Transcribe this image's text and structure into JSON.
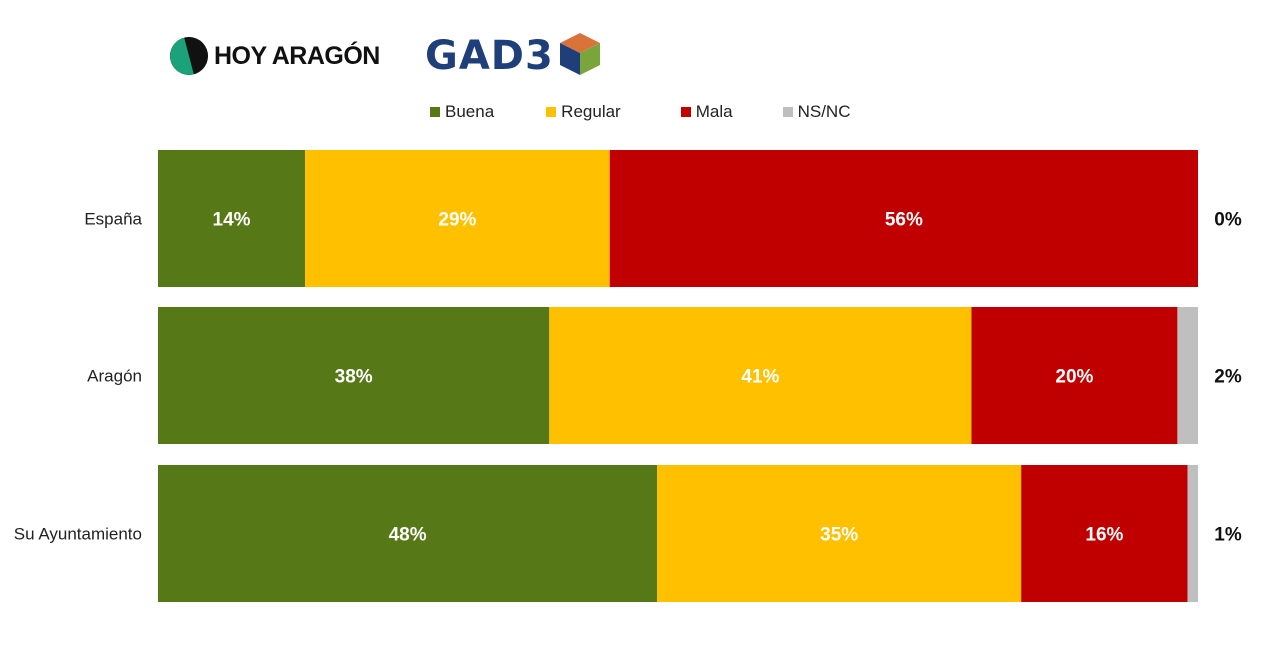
{
  "logos": {
    "hoy_aragon": "HOY ARAGÓN",
    "gad3": "GAD3"
  },
  "chart_data": {
    "type": "bar",
    "orientation": "horizontal-stacked-100",
    "categories": [
      "España",
      "Aragón",
      "Su Ayuntamiento"
    ],
    "series": [
      {
        "name": "Buena",
        "color": "#567816",
        "values": [
          14,
          38,
          48
        ],
        "labels": [
          "14%",
          "38%",
          "48%"
        ]
      },
      {
        "name": "Regular",
        "color": "#ffc000",
        "values": [
          29,
          41,
          35
        ],
        "labels": [
          "29%",
          "41%",
          "35%"
        ]
      },
      {
        "name": "Mala",
        "color": "#c00000",
        "values": [
          56,
          20,
          16
        ],
        "labels": [
          "56%",
          "20%",
          "16%"
        ]
      },
      {
        "name": "NS/NC",
        "color": "#bfbfbf",
        "values": [
          0,
          2,
          1
        ],
        "labels": [
          "0%",
          "2%",
          "1%"
        ]
      }
    ],
    "legend_position": "top",
    "grid": false
  }
}
